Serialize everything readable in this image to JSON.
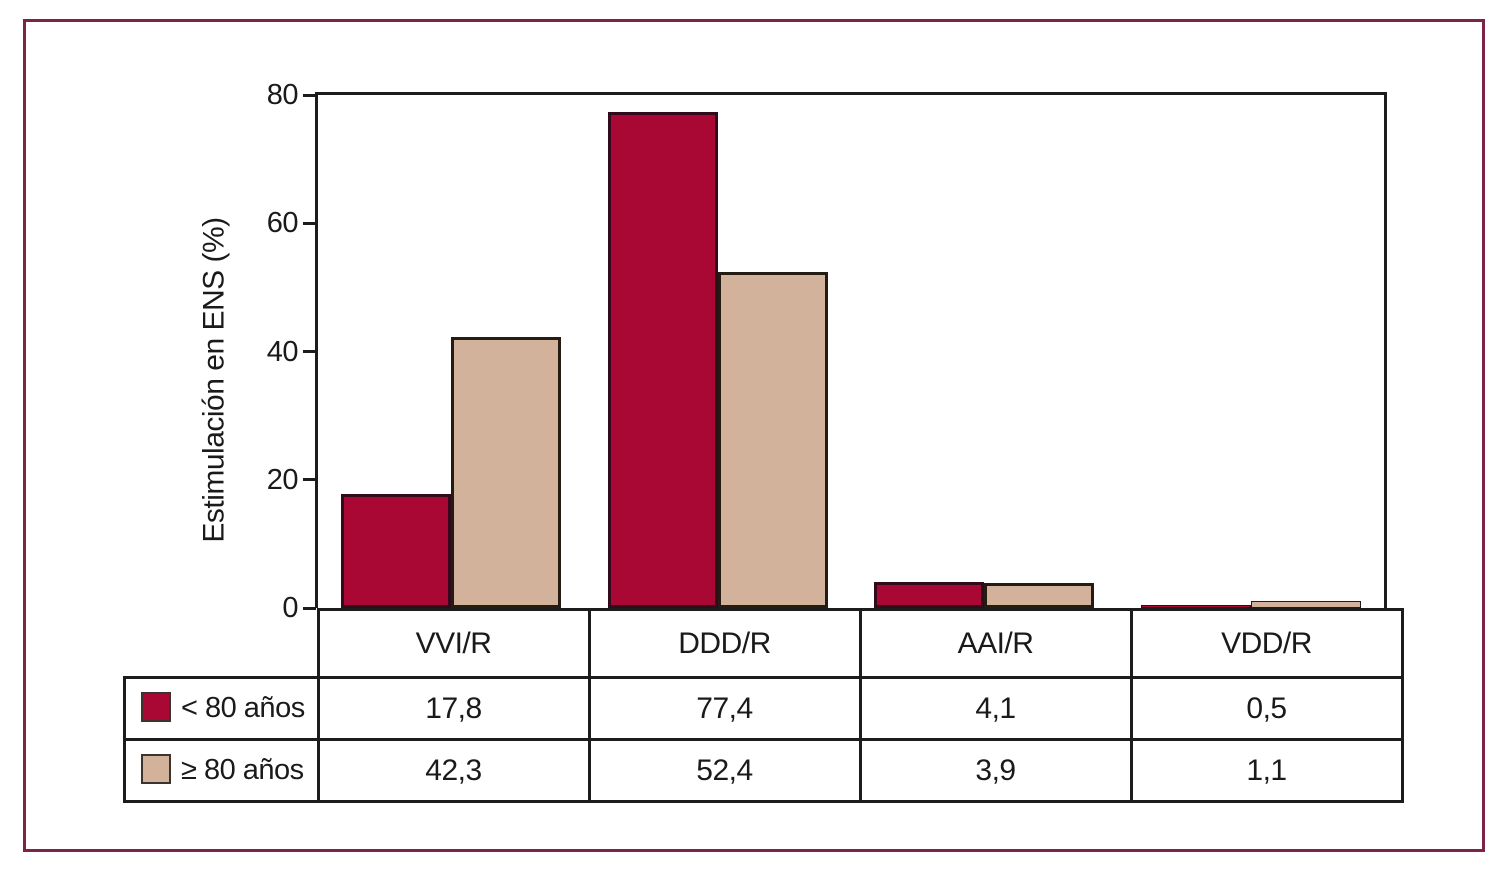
{
  "frame": {
    "border_color": "#7d2348",
    "background": "#ffffff",
    "line_color": "#1c1c1c"
  },
  "chart_data": {
    "type": "bar",
    "title": "",
    "xlabel": "",
    "ylabel": "Estimulación en ENS (%)",
    "ylim": [
      0,
      80
    ],
    "yticks": [
      0,
      20,
      40,
      60,
      80
    ],
    "ytick_labels": [
      "0",
      "20",
      "40",
      "60",
      "80"
    ],
    "grid": false,
    "legend_position": "table-left",
    "categories": [
      "VVI/R",
      "DDD/R",
      "AAI/R",
      "VDD/R"
    ],
    "series": [
      {
        "name": "< 80 años",
        "values": [
          17.8,
          77.4,
          4.1,
          0.5
        ],
        "value_labels": [
          "17,8",
          "77,4",
          "4,1",
          "0,5"
        ],
        "color": "#a90734",
        "border_color": "#330a1c"
      },
      {
        "name": "≥ 80 años",
        "values": [
          42.3,
          52.4,
          3.9,
          1.1
        ],
        "value_labels": [
          "42,3",
          "52,4",
          "3,9",
          "1,1"
        ],
        "color": "#d2b29b",
        "border_color": "#241c12"
      }
    ]
  }
}
